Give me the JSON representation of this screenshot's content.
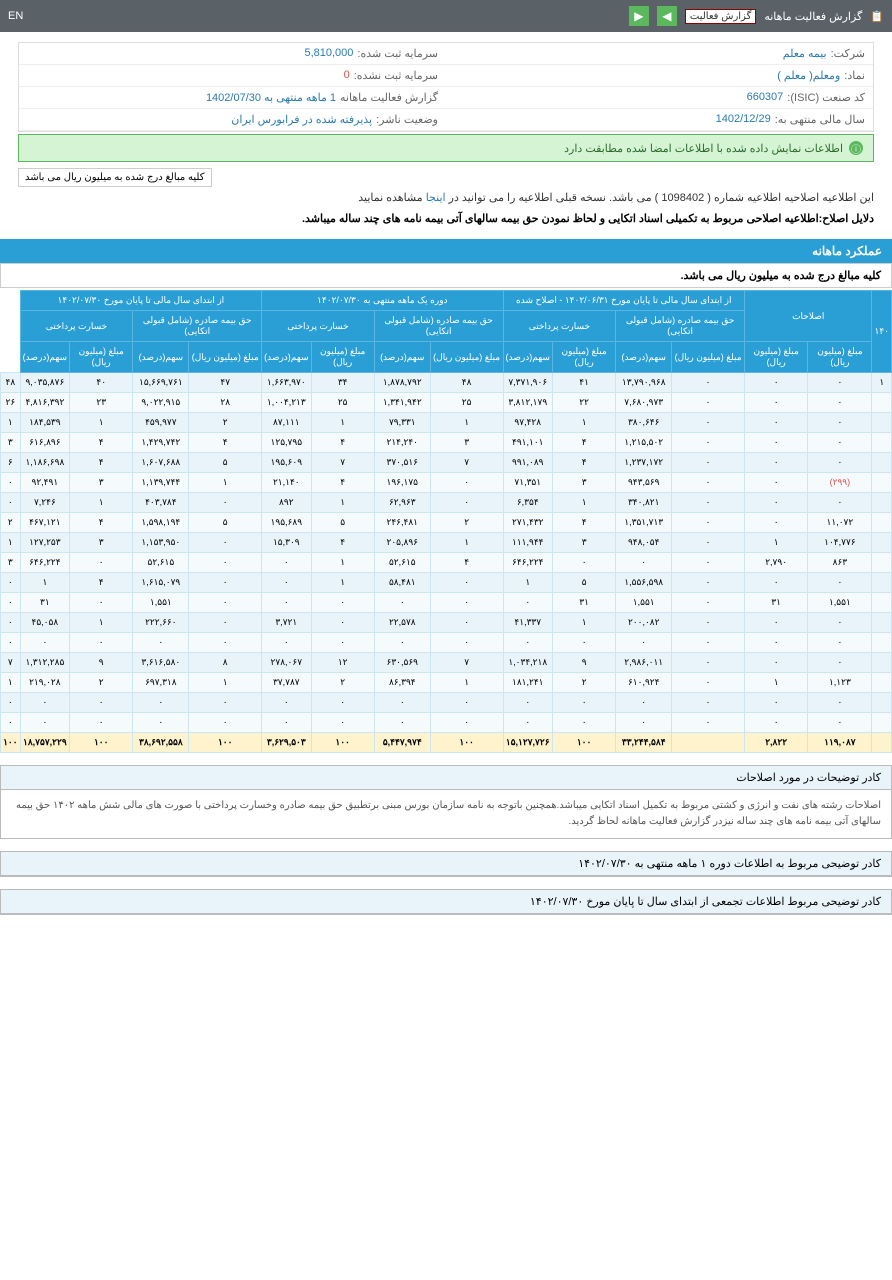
{
  "topbar": {
    "title": "گزارش فعالیت ماهانه",
    "dropdown": "گزارش فعالیت",
    "lang": "EN"
  },
  "info": {
    "company_l": "شرکت:",
    "company_v": "بیمه معلم",
    "symbol_l": "نماد:",
    "symbol_v": "ومعلم( معلم )",
    "isic_l": "کد صنعت (ISIC):",
    "isic_v": "660307",
    "fy_l": "سال مالی منتهی به:",
    "fy_v": "1402/12/29",
    "cap_l": "سرمایه ثبت شده:",
    "cap_v": "5,810,000",
    "cap2_l": "سرمایه ثبت نشده:",
    "cap2_v": "0",
    "rep_l": "گزارش فعالیت ماهانه",
    "rep_v": "1 ماهه منتهی به 1402/07/30",
    "status_l": "وضعیت ناشر:",
    "status_v": "پذیرفته شده در فرابورس ایران"
  },
  "notice": "اطلاعات نمایش داده شده با اطلاعات امضا شده مطابقت دارد",
  "unit": "کلیه مبالغ درج شده به میلیون ریال می باشد",
  "desc1_a": "این اطلاعیه اصلاحیه اطلاعیه شماره ( 1098402 ) می باشد. نسخه قبلی اطلاعیه را می توانید در ",
  "desc1_link": "اینجا",
  "desc1_b": " مشاهده نمایید",
  "desc2": "دلایل اصلاح:اطلاعیه اصلاحی مربوط به تکمیلی اسناد اتکایی و لحاظ نمودن حق بیمه سالهای آتی بیمه نامه های چند ساله میباشد.",
  "section": "عملکرد ماهانه",
  "section_sub": "کلیه مبالغ درج شده به میلیون ریال می باشد.",
  "headers": {
    "g1": "۱۴۰",
    "g2": "اصلاحات",
    "g3": "از ابتدای سال مالی تا پایان مورخ ۱۴۰۲/۰۶/۳۱ - اصلاح شده",
    "g4": "دوره یک ماهه منتهی به ۱۴۰۲/۰۷/۳۰",
    "g5": "از ابتدای سال مالی تا پایان مورخ ۱۴۰۲/۰۷/۳۰",
    "sub_prem": "حق بیمه صادره (شامل قبولی اتکایی)",
    "sub_loss": "خسارت پرداختی",
    "amt": "مبلغ (میلیون ریال)",
    "pct": "سهم(درصد)",
    "pct2": "(درصد)"
  },
  "rows": [
    [
      "۱",
      "۰",
      "۰",
      "۰",
      "۱۳,۷۹۰,۹۶۸",
      "۴۱",
      "۷,۳۷۱,۹۰۶",
      "۴۸",
      "۱,۸۷۸,۷۹۲",
      "۳۴",
      "۱,۶۶۳,۹۷۰",
      "۴۷",
      "۱۵,۶۶۹,۷۶۱",
      "۴۰",
      "۹,۰۳۵,۸۷۶",
      "۴۸"
    ],
    [
      "",
      "۰",
      "۰",
      "۰",
      "۷,۶۸۰,۹۷۳",
      "۲۲",
      "۳,۸۱۲,۱۷۹",
      "۲۵",
      "۱,۳۴۱,۹۴۲",
      "۲۵",
      "۱,۰۰۴,۲۱۳",
      "۲۸",
      "۹,۰۲۲,۹۱۵",
      "۲۳",
      "۴,۸۱۶,۳۹۲",
      "۲۶"
    ],
    [
      "",
      "۰",
      "۰",
      "۰",
      "۳۸۰,۶۴۶",
      "۱",
      "۹۷,۴۲۸",
      "۱",
      "۷۹,۳۳۱",
      "۱",
      "۸۷,۱۱۱",
      "۲",
      "۴۵۹,۹۷۷",
      "۱",
      "۱۸۴,۵۳۹",
      "۱"
    ],
    [
      "",
      "۰",
      "۰",
      "۰",
      "۱,۲۱۵,۵۰۲",
      "۴",
      "۴۹۱,۱۰۱",
      "۳",
      "۲۱۴,۲۴۰",
      "۴",
      "۱۲۵,۷۹۵",
      "۴",
      "۱,۴۲۹,۷۴۲",
      "۴",
      "۶۱۶,۸۹۶",
      "۳"
    ],
    [
      "",
      "۰",
      "۰",
      "۰",
      "۱,۲۳۷,۱۷۲",
      "۴",
      "۹۹۱,۰۸۹",
      "۷",
      "۳۷۰,۵۱۶",
      "۷",
      "۱۹۵,۶۰۹",
      "۵",
      "۱,۶۰۷,۶۸۸",
      "۴",
      "۱,۱۸۶,۶۹۸",
      "۶"
    ],
    [
      "",
      "(۲۹۹)",
      "۰",
      "۰",
      "۹۴۳,۵۶۹",
      "۳",
      "۷۱,۳۵۱",
      "۰",
      "۱۹۶,۱۷۵",
      "۴",
      "۲۱,۱۴۰",
      "۱",
      "۱,۱۳۹,۷۴۴",
      "۳",
      "۹۲,۴۹۱",
      "۰"
    ],
    [
      "",
      "۰",
      "۰",
      "۰",
      "۳۴۰,۸۲۱",
      "۱",
      "۶,۳۵۴",
      "۰",
      "۶۲,۹۶۳",
      "۱",
      "۸۹۲",
      "۰",
      "۴۰۳,۷۸۴",
      "۱",
      "۷,۲۴۶",
      "۰"
    ],
    [
      "",
      "۱۱,۰۷۲",
      "۰",
      "۰",
      "۱,۳۵۱,۷۱۳",
      "۴",
      "۲۷۱,۴۳۲",
      "۲",
      "۲۴۶,۴۸۱",
      "۵",
      "۱۹۵,۶۸۹",
      "۵",
      "۱,۵۹۸,۱۹۴",
      "۴",
      "۴۶۷,۱۲۱",
      "۲"
    ],
    [
      "",
      "۱۰۴,۷۷۶",
      "۱",
      "۰",
      "۹۴۸,۰۵۴",
      "۳",
      "۱۱۱,۹۴۴",
      "۱",
      "۲۰۵,۸۹۶",
      "۴",
      "۱۵,۳۰۹",
      "۰",
      "۱,۱۵۳,۹۵۰",
      "۳",
      "۱۲۷,۲۵۳",
      "۱"
    ],
    [
      "",
      "۸۶۳",
      "۲,۷۹۰",
      "۰",
      "۰",
      "۰",
      "۶۴۶,۲۲۴",
      "۴",
      "۵۲,۶۱۵",
      "۱",
      "۰",
      "۰",
      "۵۲,۶۱۵",
      "۰",
      "۶۴۶,۲۲۴",
      "۳"
    ],
    [
      "",
      "۰",
      "۰",
      "۰",
      "۱,۵۵۶,۵۹۸",
      "۵",
      "۱",
      "۰",
      "۵۸,۴۸۱",
      "۱",
      "۰",
      "۰",
      "۱,۶۱۵,۰۷۹",
      "۴",
      "۱",
      "۰"
    ],
    [
      "",
      "۱,۵۵۱",
      "۳۱",
      "۰",
      "۱,۵۵۱",
      "۳۱",
      "۰",
      "۰",
      "۰",
      "۰",
      "۰",
      "۰",
      "۱,۵۵۱",
      "۰",
      "۳۱",
      "۰"
    ],
    [
      "",
      "۰",
      "۰",
      "۰",
      "۲۰۰,۰۸۲",
      "۱",
      "۴۱,۳۳۷",
      "۰",
      "۲۲,۵۷۸",
      "۰",
      "۳,۷۲۱",
      "۰",
      "۲۲۲,۶۶۰",
      "۱",
      "۴۵,۰۵۸",
      "۰"
    ],
    [
      "",
      "۰",
      "۰",
      "۰",
      "۰",
      "۰",
      "۰",
      "۰",
      "۰",
      "۰",
      "۰",
      "۰",
      "۰",
      "۰",
      "۰",
      "۰"
    ],
    [
      "",
      "۰",
      "۰",
      "۰",
      "۲,۹۸۶,۰۱۱",
      "۹",
      "۱,۰۳۴,۲۱۸",
      "۷",
      "۶۳۰,۵۶۹",
      "۱۲",
      "۲۷۸,۰۶۷",
      "۸",
      "۳,۶۱۶,۵۸۰",
      "۹",
      "۱,۳۱۲,۲۸۵",
      "۷"
    ],
    [
      "",
      "۱,۱۲۳",
      "۱",
      "۰",
      "۶۱۰,۹۲۴",
      "۲",
      "۱۸۱,۲۴۱",
      "۱",
      "۸۶,۳۹۴",
      "۲",
      "۳۷,۷۸۷",
      "۱",
      "۶۹۷,۳۱۸",
      "۲",
      "۲۱۹,۰۲۸",
      "۱"
    ],
    [
      "",
      "۰",
      "۰",
      "۰",
      "۰",
      "۰",
      "۰",
      "۰",
      "۰",
      "۰",
      "۰",
      "۰",
      "۰",
      "۰",
      "۰",
      "۰"
    ],
    [
      "",
      "۰",
      "۰",
      "۰",
      "۰",
      "۰",
      "۰",
      "۰",
      "۰",
      "۰",
      "۰",
      "۰",
      "۰",
      "۰",
      "۰",
      "۰"
    ]
  ],
  "total": [
    "",
    "۱۱۹,۰۸۷",
    "۲,۸۲۲",
    "",
    "۳۳,۲۴۴,۵۸۴",
    "۱۰۰",
    "۱۵,۱۲۷,۷۲۶",
    "۱۰۰",
    "۵,۴۴۷,۹۷۴",
    "۱۰۰",
    "۳,۶۲۹,۵۰۳",
    "۱۰۰",
    "۳۸,۶۹۲,۵۵۸",
    "۱۰۰",
    "۱۸,۷۵۷,۲۲۹",
    "۱۰۰"
  ],
  "footer1_t": "کادر توضیحات در مورد اصلاحات",
  "footer1_b": "اصلاحات رشته های نفت و انرژی و کشتی مربوط به تکمیل اسناد اتکایی میباشد.همچنین باتوجه به نامه سازمان بورس مبنی برتطبیق حق بیمه صادره وخسارت پرداختی با صورت های مالی شش ماهه ۱۴۰۲ حق بیمه سالهای آتی بیمه نامه های چند ساله نیزدر گزارش فعالیت ماهانه لحاظ گردید.",
  "footer2_t": "کادر توضیحی مربوط به اطلاعات دوره ۱ ماهه منتهی به ۱۴۰۲/۰۷/۳۰",
  "footer3_t": "کادر توضیحی مربوط اطلاعات تجمعی از ابتدای سال تا پایان مورخ ۱۴۰۲/۰۷/۳۰"
}
